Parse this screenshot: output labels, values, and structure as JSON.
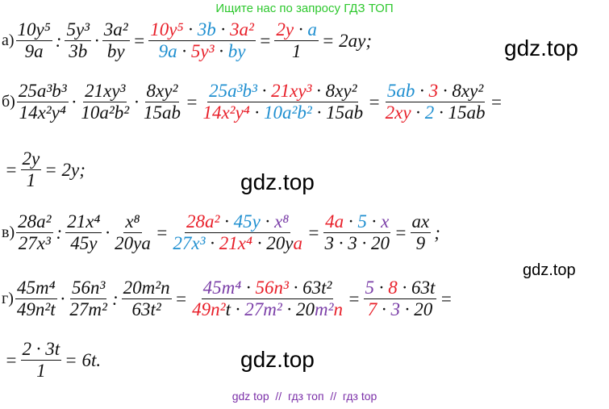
{
  "header": {
    "text": "Ищите нас по запросу ГДЗ ТОП"
  },
  "lines": [
    {
      "label": "а)",
      "items": [
        {
          "frac": {
            "num": [
              {
                "t": "10y⁵"
              }
            ],
            "den": [
              {
                "t": "9a"
              }
            ]
          }
        },
        {
          "op": ":"
        },
        {
          "frac": {
            "num": [
              {
                "t": "5y³"
              }
            ],
            "den": [
              {
                "t": "3b"
              }
            ]
          }
        },
        {
          "op": "·"
        },
        {
          "frac": {
            "num": [
              {
                "t": "3a²"
              }
            ],
            "den": [
              {
                "t": "by"
              }
            ]
          }
        },
        {
          "op": "="
        },
        {
          "frac": {
            "num": [
              {
                "t": "10y⁵",
                "c": "#e8202a"
              },
              {
                "t": " · "
              },
              {
                "t": "3b",
                "c": "#1f8fd0"
              },
              {
                "t": " · "
              },
              {
                "t": "3a²",
                "c": "#e8202a"
              }
            ],
            "den": [
              {
                "t": "9a",
                "c": "#1f8fd0"
              },
              {
                "t": " · "
              },
              {
                "t": "5y³",
                "c": "#e8202a"
              },
              {
                "t": " · "
              },
              {
                "t": "by",
                "c": "#1f8fd0"
              }
            ]
          }
        },
        {
          "op": "="
        },
        {
          "frac": {
            "num": [
              {
                "t": "2y",
                "c": "#e8202a"
              },
              {
                "t": " · "
              },
              {
                "t": "a",
                "c": "#1f8fd0"
              }
            ],
            "den": [
              {
                "t": "1"
              }
            ]
          }
        },
        {
          "op": "= 2ay;"
        }
      ]
    },
    {
      "label": "б)",
      "items": [
        {
          "frac": {
            "num": [
              {
                "t": "25a³b³"
              }
            ],
            "den": [
              {
                "t": "14x²y⁴"
              }
            ]
          }
        },
        {
          "op": "·"
        },
        {
          "frac": {
            "num": [
              {
                "t": "21xy³"
              }
            ],
            "den": [
              {
                "t": "10a²b²"
              }
            ]
          }
        },
        {
          "op": "·"
        },
        {
          "frac": {
            "num": [
              {
                "t": "8xy²"
              }
            ],
            "den": [
              {
                "t": "15ab"
              }
            ]
          }
        },
        {
          "op": "="
        },
        {
          "frac": {
            "num": [
              {
                "t": "25a³b³",
                "c": "#1f8fd0"
              },
              {
                "t": " · "
              },
              {
                "t": "21xy³",
                "c": "#e8202a"
              },
              {
                "t": " · 8xy²"
              }
            ],
            "den": [
              {
                "t": "14x²y⁴",
                "c": "#e8202a"
              },
              {
                "t": " · "
              },
              {
                "t": "10a²b²",
                "c": "#1f8fd0"
              },
              {
                "t": " · 15ab"
              }
            ]
          }
        },
        {
          "op": "="
        },
        {
          "frac": {
            "num": [
              {
                "t": "5ab",
                "c": "#1f8fd0"
              },
              {
                "t": " · "
              },
              {
                "t": "3",
                "c": "#e8202a"
              },
              {
                "t": " · 8xy²"
              }
            ],
            "den": [
              {
                "t": "2xy",
                "c": "#e8202a"
              },
              {
                "t": " · "
              },
              {
                "t": "2",
                "c": "#1f8fd0"
              },
              {
                "t": " · 15ab"
              }
            ]
          }
        },
        {
          "op": "="
        }
      ]
    },
    {
      "items": [
        {
          "op": "="
        },
        {
          "frac": {
            "num": [
              {
                "t": "2y"
              }
            ],
            "den": [
              {
                "t": "1"
              }
            ]
          }
        },
        {
          "op": "= 2y;"
        }
      ]
    },
    {
      "label": "в)",
      "items": [
        {
          "frac": {
            "num": [
              {
                "t": "28a²"
              }
            ],
            "den": [
              {
                "t": "27x³"
              }
            ]
          }
        },
        {
          "op": ":"
        },
        {
          "frac": {
            "num": [
              {
                "t": "21x⁴"
              }
            ],
            "den": [
              {
                "t": "45y"
              }
            ]
          }
        },
        {
          "op": "·"
        },
        {
          "frac": {
            "num": [
              {
                "t": "x⁸"
              }
            ],
            "den": [
              {
                "t": "20ya"
              }
            ]
          }
        },
        {
          "op": "="
        },
        {
          "frac": {
            "num": [
              {
                "t": "28a²",
                "c": "#e8202a"
              },
              {
                "t": " · "
              },
              {
                "t": "45y",
                "c": "#1f8fd0"
              },
              {
                "t": " · "
              },
              {
                "t": "x⁸",
                "c": "#7b3fa8"
              }
            ],
            "den": [
              {
                "t": "27x³",
                "c": "#1f8fd0"
              },
              {
                "t": " · "
              },
              {
                "t": "21x⁴",
                "c": "#e8202a"
              },
              {
                "t": " · 20y"
              },
              {
                "t": "a",
                "c": "#e8202a"
              }
            ]
          }
        },
        {
          "op": "="
        },
        {
          "frac": {
            "num": [
              {
                "t": "4a",
                "c": "#e8202a"
              },
              {
                "t": " · "
              },
              {
                "t": "5",
                "c": "#1f8fd0"
              },
              {
                "t": " · "
              },
              {
                "t": "x",
                "c": "#7b3fa8"
              }
            ],
            "den": [
              {
                "t": "3 · 3 · 20"
              }
            ]
          }
        },
        {
          "op": "="
        },
        {
          "frac": {
            "num": [
              {
                "t": "ax"
              }
            ],
            "den": [
              {
                "t": "9"
              }
            ]
          }
        },
        {
          "op": ";"
        }
      ]
    },
    {
      "label": "г)",
      "items": [
        {
          "frac": {
            "num": [
              {
                "t": "45m⁴"
              }
            ],
            "den": [
              {
                "t": "49n²t"
              }
            ]
          }
        },
        {
          "op": "·"
        },
        {
          "frac": {
            "num": [
              {
                "t": "56n³"
              }
            ],
            "den": [
              {
                "t": "27m²"
              }
            ]
          }
        },
        {
          "op": ":"
        },
        {
          "frac": {
            "num": [
              {
                "t": "20m²n"
              }
            ],
            "den": [
              {
                "t": "63t²"
              }
            ]
          }
        },
        {
          "op": "="
        },
        {
          "frac": {
            "num": [
              {
                "t": "45m⁴",
                "c": "#7b3fa8"
              },
              {
                "t": " · "
              },
              {
                "t": "56n³",
                "c": "#e8202a"
              },
              {
                "t": " · 63t²"
              }
            ],
            "den": [
              {
                "t": "49n²",
                "c": "#e8202a"
              },
              {
                "t": "t · "
              },
              {
                "t": "27m²",
                "c": "#7b3fa8"
              },
              {
                "t": " · 20"
              },
              {
                "t": "m²",
                "c": "#7b3fa8"
              },
              {
                "t": "n",
                "c": "#e8202a"
              }
            ]
          }
        },
        {
          "op": "="
        },
        {
          "frac": {
            "num": [
              {
                "t": "5",
                "c": "#7b3fa8"
              },
              {
                "t": " · "
              },
              {
                "t": "8",
                "c": "#e8202a"
              },
              {
                "t": " · 63t"
              }
            ],
            "den": [
              {
                "t": "7",
                "c": "#e8202a"
              },
              {
                "t": " · "
              },
              {
                "t": "3",
                "c": "#7b3fa8"
              },
              {
                "t": " · 20"
              }
            ]
          }
        },
        {
          "op": "="
        }
      ]
    },
    {
      "items": [
        {
          "op": "="
        },
        {
          "frac": {
            "num": [
              {
                "t": "2 · 3t"
              }
            ],
            "den": [
              {
                "t": "1"
              }
            ]
          }
        },
        {
          "op": "= 6t."
        }
      ]
    }
  ],
  "watermarks": [
    "gdz.top",
    "gdz.top",
    "gdz.top",
    "gdz.top"
  ],
  "footer": {
    "text": "gdz top  //  гдз топ  //  гдз top"
  }
}
